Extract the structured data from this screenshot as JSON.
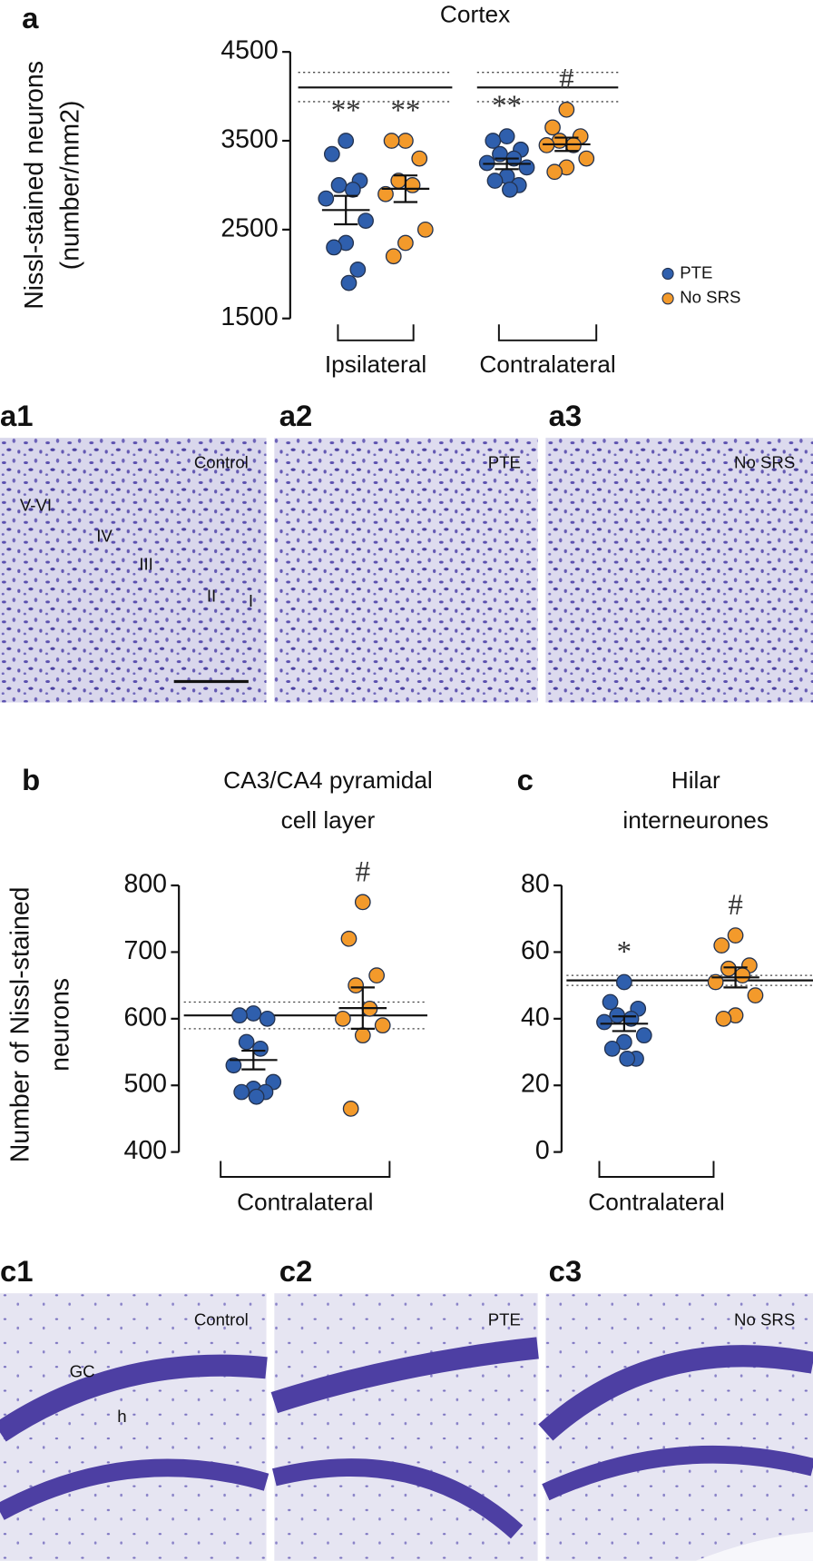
{
  "chart_data": [
    {
      "type": "dot",
      "panel": "a",
      "title": "Cortex",
      "ylabel": [
        "Nissl-stained neurons",
        "(number/mm2)"
      ],
      "categories": [
        "Ipsilateral",
        "Contralateral"
      ],
      "series": [
        {
          "name": "PTE",
          "color": "#2f5fad",
          "values": [
            [
              3500,
              3350,
              3050,
              3000,
              2950,
              2850,
              2600,
              2350,
              2300,
              2050,
              1900
            ],
            [
              3550,
              3500,
              3400,
              3350,
              3300,
              3250,
              3200,
              3100,
              3050,
              3000,
              2950
            ]
          ],
          "means": [
            2720,
            3240
          ],
          "sems": [
            160,
            60
          ],
          "annotations": [
            "**",
            "**"
          ]
        },
        {
          "name": "No SRS",
          "color": "#f39a2b",
          "values": [
            [
              3500,
              3500,
              3300,
              3050,
              3000,
              2900,
              2500,
              2350,
              2200
            ],
            [
              3850,
              3650,
              3550,
              3500,
              3450,
              3450,
              3300,
              3200,
              3150
            ]
          ],
          "means": [
            2960,
            3460
          ],
          "sems": [
            150,
            75
          ],
          "annotations": [
            "**",
            "#"
          ]
        }
      ],
      "reference": {
        "mean": 4100,
        "band": [
          3940,
          4270
        ]
      },
      "ylim": [
        1500,
        4500
      ],
      "yticks": [
        1500,
        2500,
        3500,
        4500
      ],
      "legend": "right"
    },
    {
      "type": "dot",
      "panel": "b",
      "title": [
        "CA3/CA4 pyramidal",
        "cell layer"
      ],
      "ylabel": [
        "Number of Nissl-stained",
        "neurons"
      ],
      "categories": [
        "Contralateral"
      ],
      "series": [
        {
          "name": "PTE",
          "color": "#2f5fad",
          "values": [
            [
              608,
              605,
              600,
              565,
              555,
              530,
              505,
              495,
              490,
              490,
              483
            ]
          ],
          "means": [
            538
          ],
          "sems": [
            14
          ],
          "annotations": [
            null
          ]
        },
        {
          "name": "No SRS",
          "color": "#f39a2b",
          "values": [
            [
              775,
              720,
              665,
              650,
              615,
              600,
              590,
              575,
              465
            ]
          ],
          "means": [
            616
          ],
          "sems": [
            31
          ],
          "annotations": [
            "#"
          ]
        }
      ],
      "reference": {
        "mean": 605,
        "band": [
          585,
          625
        ]
      },
      "ylim": [
        400,
        800
      ],
      "yticks": [
        400,
        500,
        600,
        700,
        800
      ]
    },
    {
      "type": "dot",
      "panel": "c",
      "title": [
        "Hilar",
        "interneurones"
      ],
      "categories": [
        "Contralateral"
      ],
      "series": [
        {
          "name": "PTE",
          "color": "#2f5fad",
          "values": [
            [
              51,
              45,
              43,
              41,
              40,
              39,
              35,
              33,
              31,
              28,
              28
            ]
          ],
          "means": [
            38.5
          ],
          "sems": [
            2.2
          ],
          "annotations": [
            "*"
          ]
        },
        {
          "name": "No SRS",
          "color": "#f39a2b",
          "values": [
            [
              65,
              62,
              56,
              55,
              53,
              51,
              47,
              41,
              40
            ]
          ],
          "means": [
            52.4
          ],
          "sems": [
            3
          ],
          "annotations": [
            "#"
          ]
        }
      ],
      "reference": {
        "mean": 51.5,
        "band": [
          50,
          53
        ]
      },
      "ylim": [
        0,
        80
      ],
      "yticks": [
        0,
        20,
        40,
        60,
        80
      ]
    }
  ],
  "micrographs": [
    {
      "panel": "a1",
      "label": "Control",
      "layers": [
        "V-VI",
        "IV",
        "III",
        "II",
        "I"
      ]
    },
    {
      "panel": "a2",
      "label": "PTE"
    },
    {
      "panel": "a3",
      "label": "No SRS"
    },
    {
      "panel": "c1",
      "label": "Control",
      "regions": [
        "GC",
        "h"
      ]
    },
    {
      "panel": "c2",
      "label": "PTE"
    },
    {
      "panel": "c3",
      "label": "No SRS"
    }
  ]
}
